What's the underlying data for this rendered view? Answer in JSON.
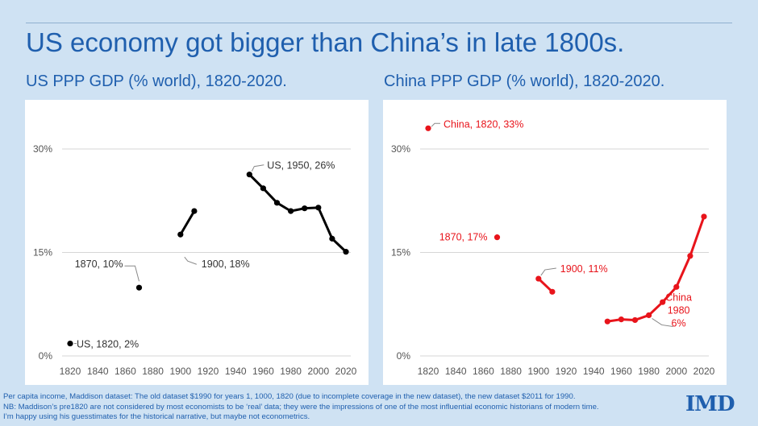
{
  "title": "US economy got bigger than China’s in late 1800s.",
  "footnote": {
    "line1": "Per capita income, Maddison dataset: The old dataset $1990 for years 1, 1000, 1820 (due to incomplete coverage in the new dataset), the new dataset $2011 for 1990.",
    "line2": "NB: Maddison’s pre1820 are not considered by most economists to be ‘real’ data; they were the impressions of one of the most influential economic historians of modern time.",
    "line3": "I’m happy using his guesstimates for the historical narrative, but maybe not econometrics."
  },
  "logo": "IMD",
  "colors": {
    "us": "#000000",
    "china": "#e8141b",
    "title": "#1f5fae"
  },
  "chart_data": [
    {
      "type": "line",
      "title": "US PPP GDP (% world), 1820-2020.",
      "color": "#000000",
      "xlim": [
        1820,
        2020
      ],
      "ylim": [
        0,
        30
      ],
      "xticks": [
        1820,
        1840,
        1860,
        1880,
        1900,
        1920,
        1940,
        1960,
        1980,
        2000,
        2020
      ],
      "yticks": [
        0,
        15,
        30
      ],
      "ytick_labels": [
        "0%",
        "15%",
        "30%"
      ],
      "segments": [
        [
          {
            "x": 1820,
            "y": 1.8
          }
        ],
        [
          {
            "x": 1870,
            "y": 9.9
          }
        ],
        [
          {
            "x": 1900,
            "y": 17.6
          },
          {
            "x": 1910,
            "y": 21
          }
        ],
        [
          {
            "x": 1950,
            "y": 26.3
          },
          {
            "x": 1960,
            "y": 24.3
          },
          {
            "x": 1970,
            "y": 22.2
          },
          {
            "x": 1980,
            "y": 21
          },
          {
            "x": 1990,
            "y": 21.4
          },
          {
            "x": 2000,
            "y": 21.5
          },
          {
            "x": 2010,
            "y": 17
          },
          {
            "x": 2020,
            "y": 15.1
          }
        ]
      ],
      "annotations": [
        {
          "text": "US, 1820, 2%",
          "x": 1820,
          "y": 1.8
        },
        {
          "text": "1870, 10%",
          "x": 1870,
          "y": 9.9
        },
        {
          "text": "1900, 18%",
          "x": 1900,
          "y": 17.6
        },
        {
          "text": "US, 1950, 26%",
          "x": 1950,
          "y": 26.3
        }
      ]
    },
    {
      "type": "line",
      "title": "China PPP GDP (% world), 1820-2020.",
      "color": "#e8141b",
      "xlim": [
        1820,
        2020
      ],
      "ylim": [
        0,
        30
      ],
      "xticks": [
        1820,
        1840,
        1860,
        1880,
        1900,
        1920,
        1940,
        1960,
        1980,
        2000,
        2020
      ],
      "yticks": [
        0,
        15,
        30
      ],
      "ytick_labels": [
        "0%",
        "15%",
        "30%"
      ],
      "segments": [
        [
          {
            "x": 1820,
            "y": 33
          }
        ],
        [
          {
            "x": 1870,
            "y": 17.2
          }
        ],
        [
          {
            "x": 1900,
            "y": 11.2
          },
          {
            "x": 1910,
            "y": 9.3
          }
        ],
        [
          {
            "x": 1950,
            "y": 5
          },
          {
            "x": 1960,
            "y": 5.3
          },
          {
            "x": 1970,
            "y": 5.2
          },
          {
            "x": 1980,
            "y": 5.9
          },
          {
            "x": 1990,
            "y": 7.8
          },
          {
            "x": 2000,
            "y": 10
          },
          {
            "x": 2010,
            "y": 14.5
          },
          {
            "x": 2020,
            "y": 20.2
          }
        ]
      ],
      "annotations": [
        {
          "text": "China, 1820, 33%",
          "x": 1820,
          "y": 33
        },
        {
          "text": "1870, 17%",
          "x": 1870,
          "y": 17.2
        },
        {
          "text": "1900, 11%",
          "x": 1900,
          "y": 11.2
        },
        {
          "text": [
            "China",
            "1980",
            "6%"
          ],
          "x": 1980,
          "y": 5.9
        }
      ]
    }
  ]
}
